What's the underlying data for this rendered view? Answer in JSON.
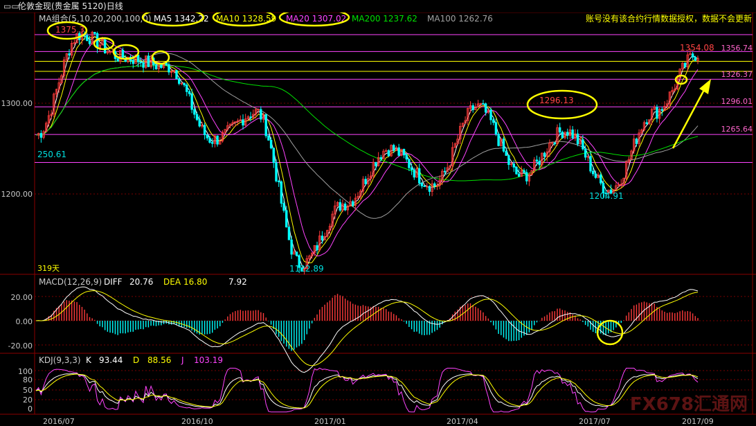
{
  "window": {
    "title": "伦敦金现(贵金属 5120)日线",
    "icon": "chart-window-icon"
  },
  "ma_legend": {
    "group": "MA组合(5,10,20,200,100,0)",
    "items": [
      {
        "label": "MA5 1342.22",
        "color": "#ffffff"
      },
      {
        "label": "MA10 1328.59",
        "color": "#ffff00"
      },
      {
        "label": "MA20 1307.02",
        "color": "#ff44ff"
      },
      {
        "label": "MA200 1237.62",
        "color": "#00e000"
      },
      {
        "label": "MA100 1262.76",
        "color": "#a0a0a0"
      }
    ],
    "notice": "账号没有该合约行情数据授权，数据不会更新"
  },
  "price_axis": {
    "ticks": [
      "1300.00",
      "1200.00"
    ]
  },
  "annotations": {
    "high_label": "1375.3",
    "low_left": "250.61",
    "low_main": "1122.89",
    "peak_mid": "1296.13",
    "low_right": "1204.91",
    "last_price": "1354.08",
    "days": "319天"
  },
  "right_levels": [
    "1356.74",
    "1326.37",
    "1296.01",
    "1265.64"
  ],
  "macd": {
    "label": "MACD(12,26,9)",
    "diff_label": "DIFF",
    "diff_value": "20.76",
    "dea_label": "DEA",
    "dea_value": "16.80",
    "macd_value": "7.92",
    "ticks": [
      "20.00",
      "0.00",
      "-20.00"
    ]
  },
  "kdj": {
    "label": "KDJ(9,3,3)",
    "k_label": "K",
    "k_value": "93.44",
    "d_label": "D",
    "d_value": "88.56",
    "j_label": "J",
    "j_value": "103.19",
    "ticks": [
      "100",
      "80",
      "50",
      "20",
      "0"
    ]
  },
  "x_axis": {
    "labels": [
      "2016/07",
      "2016/10",
      "2017/01",
      "2017/04",
      "2017/07",
      "2017/09"
    ]
  },
  "watermark": "FX678汇通网",
  "colors": {
    "up": "#ff3b3b",
    "down": "#00ffff",
    "ma5": "#ffffff",
    "ma10": "#ffff00",
    "ma20": "#ff44ff",
    "ma200": "#00e000",
    "ma100": "#a0a0a0",
    "highlight": "#ffff00"
  },
  "chart_data": {
    "type": "candlestick",
    "y_range": [
      1122.89,
      1375.3
    ],
    "price_path": [
      [
        "2016/06",
        1265
      ],
      [
        "2016/07",
        1375.3
      ],
      [
        "2016/08",
        1350
      ],
      [
        "2016/09",
        1340
      ],
      [
        "2016/10",
        1260
      ],
      [
        "2016/11",
        1290
      ],
      [
        "2016/12",
        1122.89
      ],
      [
        "2017/01",
        1190
      ],
      [
        "2017/02",
        1250
      ],
      [
        "2017/03",
        1210
      ],
      [
        "2017/04",
        1296.13
      ],
      [
        "2017/05",
        1220
      ],
      [
        "2017/06",
        1270
      ],
      [
        "2017/07",
        1204.91
      ],
      [
        "2017/08",
        1290
      ],
      [
        "2017/09",
        1354.08
      ]
    ],
    "horizontal_levels": [
      1375.3,
      1356.74,
      1346.0,
      1335.0,
      1326.37,
      1296.01,
      1265.64,
      1235.0
    ],
    "indicators": {
      "MA5": 1342.22,
      "MA10": 1328.59,
      "MA20": 1307.02,
      "MA200": 1237.62,
      "MA100": 1262.76,
      "MACD": {
        "DIFF": 20.76,
        "DEA": 16.8,
        "MACD": 7.92
      },
      "KDJ": {
        "K": 93.44,
        "D": 88.56,
        "J": 103.19
      }
    }
  }
}
